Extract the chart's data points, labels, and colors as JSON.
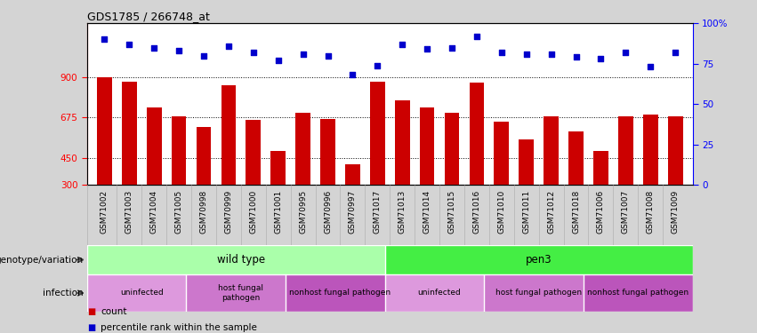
{
  "title": "GDS1785 / 266748_at",
  "samples": [
    "GSM71002",
    "GSM71003",
    "GSM71004",
    "GSM71005",
    "GSM70998",
    "GSM70999",
    "GSM71000",
    "GSM71001",
    "GSM70995",
    "GSM70996",
    "GSM70997",
    "GSM71017",
    "GSM71013",
    "GSM71014",
    "GSM71015",
    "GSM71016",
    "GSM71010",
    "GSM71011",
    "GSM71012",
    "GSM71018",
    "GSM71006",
    "GSM71007",
    "GSM71008",
    "GSM71009"
  ],
  "counts": [
    900,
    875,
    730,
    680,
    620,
    855,
    660,
    490,
    700,
    665,
    415,
    875,
    770,
    730,
    700,
    870,
    650,
    555,
    680,
    600,
    490,
    680,
    690,
    680
  ],
  "percentiles": [
    90,
    87,
    85,
    83,
    80,
    86,
    82,
    77,
    81,
    80,
    68,
    74,
    87,
    84,
    85,
    92,
    82,
    81,
    81,
    79,
    78,
    82,
    73,
    82
  ],
  "ylim_left": [
    300,
    1200
  ],
  "ylim_right": [
    0,
    100
  ],
  "yticks_left": [
    300,
    450,
    675,
    900
  ],
  "yticks_right": [
    0,
    25,
    50,
    75,
    100
  ],
  "ytick_right_labels": [
    "0",
    "25",
    "50",
    "75",
    "100%"
  ],
  "bar_color": "#cc0000",
  "dot_color": "#0000cc",
  "fig_bg": "#d4d4d4",
  "plot_bg": "#ffffff",
  "xticklabel_bg": "#c8c8c8",
  "genotype_groups": [
    {
      "label": "wild type",
      "start": 0,
      "end": 12,
      "color": "#aaffaa"
    },
    {
      "label": "pen3",
      "start": 12,
      "end": 24,
      "color": "#44ee44"
    }
  ],
  "infection_groups": [
    {
      "label": "uninfected",
      "start": 0,
      "end": 4,
      "color": "#dd99dd"
    },
    {
      "label": "host fungal\npathogen",
      "start": 4,
      "end": 8,
      "color": "#cc77cc"
    },
    {
      "label": "nonhost fungal pathogen",
      "start": 8,
      "end": 12,
      "color": "#bb55bb"
    },
    {
      "label": "uninfected",
      "start": 12,
      "end": 16,
      "color": "#dd99dd"
    },
    {
      "label": "host fungal pathogen",
      "start": 16,
      "end": 20,
      "color": "#cc77cc"
    },
    {
      "label": "nonhost fungal pathogen",
      "start": 20,
      "end": 24,
      "color": "#bb55bb"
    }
  ],
  "legend_items": [
    {
      "color": "#cc0000",
      "label": "count"
    },
    {
      "color": "#0000cc",
      "label": "percentile rank within the sample"
    }
  ]
}
